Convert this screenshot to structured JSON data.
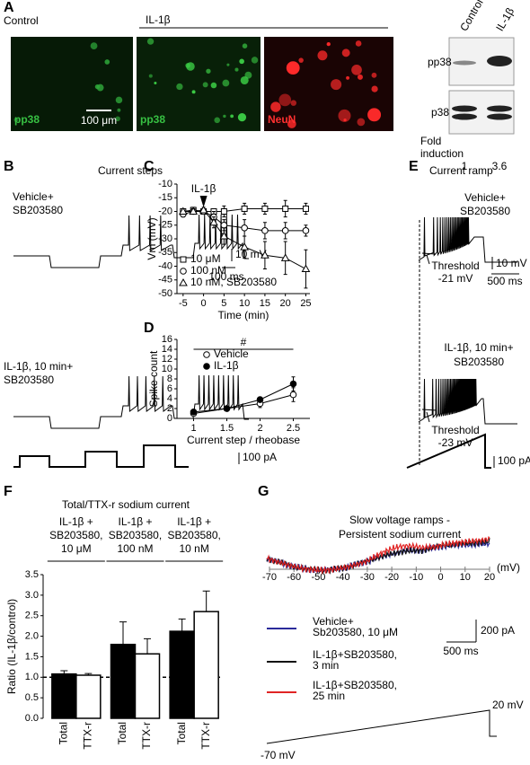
{
  "panels": {
    "A": {
      "label": "A",
      "control": "Control",
      "treatment": "IL-1β",
      "image_labels": [
        "pp38",
        "pp38",
        "NeuN"
      ],
      "scale_bar": "100 μm",
      "blot_lanes": [
        "Control",
        "IL-1β"
      ],
      "blot_rows": [
        "pp38",
        "p38"
      ],
      "fold_label": [
        "Fold",
        "induction"
      ],
      "fold_values": [
        1,
        3.6
      ]
    },
    "B": {
      "label": "B",
      "title": "Current steps",
      "vehicle": [
        "Vehicle+",
        "SB203580"
      ],
      "treated": [
        "IL-1β, 10 min+",
        "SB203580"
      ],
      "scale_v": "10 mV",
      "scale_t": "100 ms",
      "scale_i": "100 pA"
    },
    "E": {
      "label": "E",
      "title": "Current ramp",
      "vehicle": [
        "Vehicle+",
        "SB203580"
      ],
      "threshold1": [
        "Threshold",
        "-21 mV"
      ],
      "scale_v": "10 mV",
      "scale_t": "500 ms",
      "treated": [
        "IL-1β, 10 min+",
        "SB203580"
      ],
      "threshold2": [
        "Threshold",
        "-23 mV"
      ],
      "scale_i": "100 pA"
    },
    "G": {
      "label": "G",
      "title": [
        "Slow voltage ramps -",
        "Persistent sodium current"
      ],
      "xticks": [
        -70,
        -60,
        -50,
        -40,
        -30,
        -20,
        -10,
        0,
        10,
        20
      ],
      "unit": "(mV)",
      "legend": [
        [
          "Vehicle+",
          "Sb203580, 10 μM"
        ],
        [
          "IL-1β+SB203580,",
          "3 min"
        ],
        [
          "IL-1β+SB203580,",
          "25 min"
        ]
      ],
      "legend_colors": [
        "#2a2a9a",
        "#111111",
        "#e02424"
      ],
      "scale_i": "200 pA",
      "scale_t": "500 ms",
      "ramp_top": "20 mV",
      "ramp_bottom": "-70 mV"
    }
  },
  "chart_data": [
    {
      "panel": "C",
      "type": "line",
      "x": [
        -5,
        -2.5,
        0,
        2.5,
        5,
        10,
        15,
        20,
        25
      ],
      "xlim": [
        -6.5,
        26
      ],
      "xticks": [
        -5,
        0,
        5,
        10,
        15,
        20,
        25
      ],
      "ylim": [
        -50,
        -10
      ],
      "yticks": [
        -50,
        -45,
        -40,
        -35,
        -30,
        -25,
        -20,
        -15,
        -10
      ],
      "xlabel": "Time (min)",
      "ylabel": "Vm (mV)",
      "annotation": "IL-1β",
      "series": [
        {
          "name": "10 μM",
          "marker": "square",
          "filled": false,
          "color": "#000000",
          "values": [
            -20,
            -19.5,
            -20,
            -20,
            -20,
            -19,
            -19,
            -19,
            -19
          ],
          "errors": [
            1,
            1,
            1,
            1,
            2,
            2,
            2,
            3,
            2
          ]
        },
        {
          "name": "100 nM",
          "marker": "circle",
          "filled": false,
          "color": "#000000",
          "values": [
            -21,
            -20,
            -20,
            -22,
            -25,
            -26,
            -27,
            -27,
            -27
          ],
          "errors": [
            1,
            1,
            1,
            2,
            2,
            3,
            3,
            3,
            2
          ]
        },
        {
          "name": "10 nM, SB203580",
          "marker": "triangle",
          "filled": false,
          "color": "#000000",
          "values": [
            -20,
            -20,
            -19.5,
            -24,
            -29,
            -33,
            -36,
            -37,
            -41
          ],
          "errors": [
            1,
            1,
            1,
            2,
            3,
            4,
            5,
            6,
            7
          ]
        }
      ]
    },
    {
      "panel": "D",
      "type": "line",
      "x": [
        1,
        1.5,
        2,
        2.5
      ],
      "xlim": [
        0.75,
        2.75
      ],
      "xticks": [
        1,
        1.5,
        2,
        2.5
      ],
      "ylim": [
        0,
        16
      ],
      "yticks": [
        0,
        2,
        4,
        6,
        8,
        10,
        12,
        14,
        16
      ],
      "xlabel": "Current step / rheobase",
      "ylabel": "Spike count",
      "annotation": "#",
      "series": [
        {
          "name": "Vehicle",
          "marker": "circle",
          "filled": false,
          "color": "#000000",
          "values": [
            1,
            2,
            3,
            4.8
          ],
          "errors": [
            0.3,
            0.3,
            0.8,
            1.4
          ]
        },
        {
          "name": "IL-1β",
          "marker": "circle",
          "filled": true,
          "color": "#000000",
          "values": [
            1.3,
            2,
            3.8,
            7
          ],
          "errors": [
            0.3,
            0.3,
            0.5,
            1.4
          ]
        }
      ]
    },
    {
      "panel": "F",
      "type": "bar",
      "title": "Total/TTX-r sodium current",
      "categories": [
        [
          "IL-1β +",
          "SB203580,",
          "10 μM"
        ],
        [
          "IL-1β +",
          "SB203580,",
          "100 nM"
        ],
        [
          "IL-1β +",
          "SB203580,",
          "10 nM"
        ]
      ],
      "ylim": [
        0,
        3.5
      ],
      "yticks": [
        {
          "value": 0,
          "label": "0.0"
        },
        {
          "value": 0.5,
          "label": "0.5"
        },
        {
          "value": 1,
          "label": "1.0"
        },
        {
          "value": 1.5,
          "label": "1.5"
        },
        {
          "value": 2,
          "label": "2.0"
        },
        {
          "value": 2.5,
          "label": "2.5"
        },
        {
          "value": 3,
          "label": "3.0"
        },
        {
          "value": 3.5,
          "label": "3.5"
        }
      ],
      "ylabel": "Ratio (IL-1β/control)",
      "reference_line": 1,
      "series": [
        {
          "name": "Total",
          "color": "#000000",
          "values": [
            1.08,
            1.8,
            2.12
          ],
          "errors": [
            0.08,
            0.55,
            0.3
          ]
        },
        {
          "name": "TTX-r",
          "color": "#ffffff",
          "values": [
            1.05,
            1.57,
            2.6
          ],
          "errors": [
            0.04,
            0.37,
            0.5
          ]
        }
      ]
    }
  ]
}
